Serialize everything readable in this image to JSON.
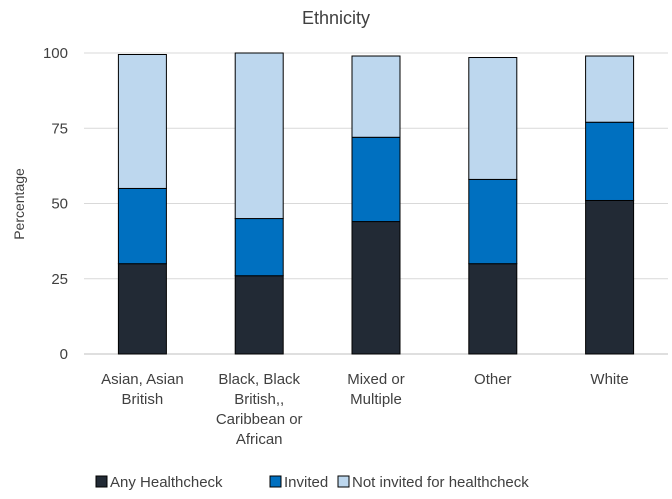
{
  "chart_data": {
    "type": "bar",
    "stacked": true,
    "title": "Ethnicity",
    "xlabel": "",
    "ylabel": "Percentage",
    "ylim": [
      0,
      100
    ],
    "yticks": [
      0,
      25,
      50,
      75,
      100
    ],
    "grid": true,
    "legend_position": "bottom",
    "categories": [
      [
        "Asian, Asian",
        "British"
      ],
      [
        "Black, Black",
        "British,,",
        "Caribbean or",
        "African"
      ],
      [
        "Mixed or",
        "Multiple"
      ],
      [
        "Other"
      ],
      [
        "White"
      ]
    ],
    "series": [
      {
        "name": "Any Healthcheck",
        "color": "#222a35",
        "values": [
          30,
          26,
          44,
          30,
          51
        ]
      },
      {
        "name": "Invited",
        "color": "#0070c0",
        "values": [
          25,
          19,
          28,
          28,
          26
        ]
      },
      {
        "name": "Not invited for healthcheck",
        "color": "#bdd7ee",
        "values": [
          44.5,
          55,
          27,
          40.5,
          22
        ]
      }
    ]
  }
}
